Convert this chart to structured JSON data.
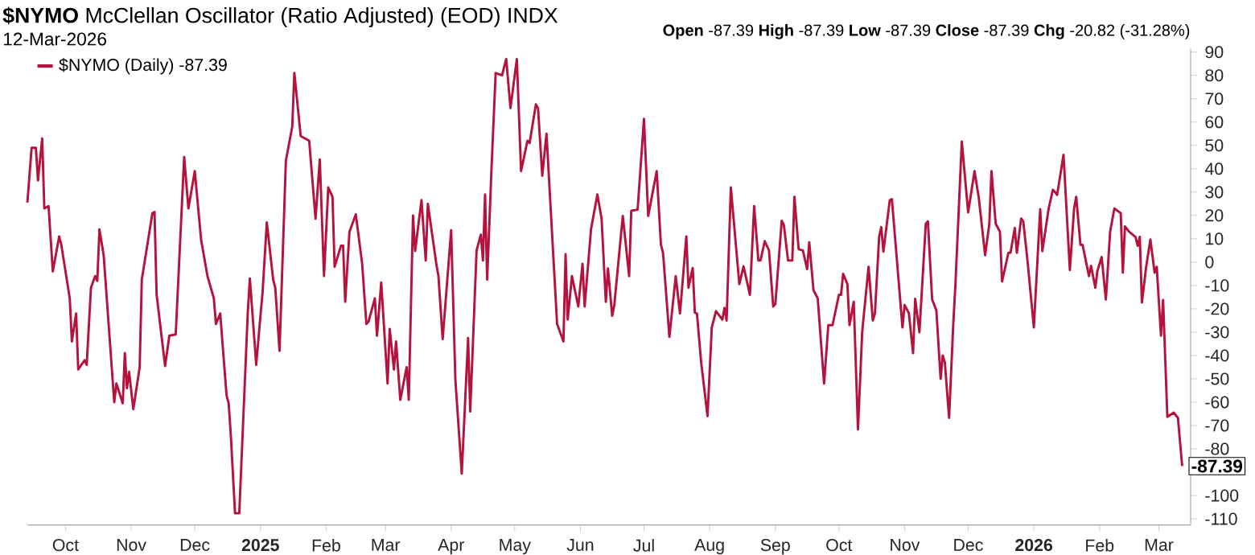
{
  "chart_data": {
    "type": "line",
    "title": "**$NYMO** McClellan Oscillator (Ratio Adjusted) (EOD) INDX",
    "subtitle": "12-Mar-2026",
    "annotations": [
      "**Open** -87.39 **High** -87.39 **Low** -87.39 **Close** -87.39 **Chg** -20.82 (-31.28%)",
      {
        "text": "-87.39",
        "x": "2026-03-12",
        "y": -87.39
      }
    ],
    "legend": "top left",
    "grid": false,
    "tick_labels": "xy",
    "xlim": [
      "2024-09-13",
      "2026-03-16"
    ],
    "ylim": [
      -112.6,
      91.4
    ],
    "xticks": [
      {
        "value": "2024-10-01",
        "label": "Oct"
      },
      {
        "value": "2024-11-01",
        "label": "Nov"
      },
      {
        "value": "2024-12-01",
        "label": "Dec"
      },
      {
        "value": "2025-01-01",
        "label": "2025"
      },
      {
        "value": "2025-02-01",
        "label": "Feb"
      },
      {
        "value": "2025-03-01",
        "label": "Mar"
      },
      {
        "value": "2025-04-01",
        "label": "Apr"
      },
      {
        "value": "2025-05-01",
        "label": "May"
      },
      {
        "value": "2025-06-01",
        "label": "Jun"
      },
      {
        "value": "2025-07-01",
        "label": "Jul"
      },
      {
        "value": "2025-08-01",
        "label": "Aug"
      },
      {
        "value": "2025-09-01",
        "label": "Sep"
      },
      {
        "value": "2025-10-01",
        "label": "Oct"
      },
      {
        "value": "2025-11-01",
        "label": "Nov"
      },
      {
        "value": "2025-12-01",
        "label": "Dec"
      },
      {
        "value": "2026-01-01",
        "label": "2026"
      },
      {
        "value": "2026-02-01",
        "label": "Feb"
      },
      {
        "value": "2026-03-01",
        "label": "Mar"
      }
    ],
    "yticks": [
      90,
      80,
      70,
      60,
      50,
      40,
      30,
      20,
      10,
      0,
      -10,
      -20,
      -30,
      -40,
      -50,
      -60,
      -70,
      -80,
      -100,
      -110
    ],
    "series": [
      {
        "name": "$NYMO (Daily) -87.39",
        "color": "#b5123e",
        "x": [
          "2024-09-13",
          "2024-09-15",
          "2024-09-17",
          "2024-09-18",
          "2024-09-20",
          "2024-09-21",
          "2024-09-23",
          "2024-09-25",
          "2024-09-28",
          "2024-09-29",
          "2024-10-03",
          "2024-10-04",
          "2024-10-06",
          "2024-10-07",
          "2024-10-10",
          "2024-10-11",
          "2024-10-13",
          "2024-10-15",
          "2024-10-16",
          "2024-10-17",
          "2024-10-19",
          "2024-10-24",
          "2024-10-25",
          "2024-10-28",
          "2024-10-29",
          "2024-10-30",
          "2024-10-31",
          "2024-11-02",
          "2024-11-05",
          "2024-11-06",
          "2024-11-11",
          "2024-11-12",
          "2024-11-13",
          "2024-11-17",
          "2024-11-19",
          "2024-11-22",
          "2024-11-26",
          "2024-11-28",
          "2024-12-01",
          "2024-12-04",
          "2024-12-07",
          "2024-12-10",
          "2024-12-11",
          "2024-12-13",
          "2024-12-16",
          "2024-12-17",
          "2024-12-18",
          "2024-12-20",
          "2024-12-22",
          "2024-12-26",
          "2024-12-27",
          "2024-12-30",
          "2025-01-01",
          "2025-01-02",
          "2025-01-04",
          "2025-01-07",
          "2025-01-08",
          "2025-01-10",
          "2025-01-13",
          "2025-01-16",
          "2025-01-17",
          "2025-01-20",
          "2025-01-24",
          "2025-01-27",
          "2025-01-29",
          "2025-01-31",
          "2025-02-02",
          "2025-02-04",
          "2025-02-05",
          "2025-02-08",
          "2025-02-09",
          "2025-02-10",
          "2025-02-12",
          "2025-02-15",
          "2025-02-18",
          "2025-02-20",
          "2025-02-21",
          "2025-02-24",
          "2025-02-25",
          "2025-02-27",
          "2025-03-02",
          "2025-03-03",
          "2025-03-05",
          "2025-03-06",
          "2025-03-08",
          "2025-03-11",
          "2025-03-12",
          "2025-03-14",
          "2025-03-15",
          "2025-03-18",
          "2025-03-20",
          "2025-03-21",
          "2025-03-25",
          "2025-03-26",
          "2025-03-28",
          "2025-04-01",
          "2025-04-03",
          "2025-04-06",
          "2025-04-09",
          "2025-04-10",
          "2025-04-13",
          "2025-04-15",
          "2025-04-16",
          "2025-04-17",
          "2025-04-18",
          "2025-04-20",
          "2025-04-22",
          "2025-04-25",
          "2025-04-27",
          "2025-04-29",
          "2025-05-02",
          "2025-05-04",
          "2025-05-07",
          "2025-05-08",
          "2025-05-11",
          "2025-05-12",
          "2025-05-14",
          "2025-05-16",
          "2025-05-21",
          "2025-05-24",
          "2025-05-25",
          "2025-05-26",
          "2025-05-28",
          "2025-05-31",
          "2025-06-02",
          "2025-06-03",
          "2025-06-06",
          "2025-06-09",
          "2025-06-11",
          "2025-06-13",
          "2025-06-14",
          "2025-06-16",
          "2025-06-17",
          "2025-06-21",
          "2025-06-24",
          "2025-06-25",
          "2025-06-28",
          "2025-07-01",
          "2025-07-03",
          "2025-07-07",
          "2025-07-09",
          "2025-07-10",
          "2025-07-13",
          "2025-07-16",
          "2025-07-18",
          "2025-07-21",
          "2025-07-22",
          "2025-07-24",
          "2025-07-25",
          "2025-07-26",
          "2025-07-28",
          "2025-07-31",
          "2025-08-02",
          "2025-08-04",
          "2025-08-07",
          "2025-08-08",
          "2025-08-09",
          "2025-08-11",
          "2025-08-15",
          "2025-08-17",
          "2025-08-20",
          "2025-08-22",
          "2025-08-24",
          "2025-08-25",
          "2025-08-27",
          "2025-08-29",
          "2025-08-31",
          "2025-09-01",
          "2025-09-04",
          "2025-09-05",
          "2025-09-07",
          "2025-09-09",
          "2025-09-10",
          "2025-09-12",
          "2025-09-14",
          "2025-09-16",
          "2025-09-17",
          "2025-09-19",
          "2025-09-21",
          "2025-09-24",
          "2025-09-26",
          "2025-09-28",
          "2025-10-01",
          "2025-10-02",
          "2025-10-03",
          "2025-10-05",
          "2025-10-06",
          "2025-10-08",
          "2025-10-10",
          "2025-10-12",
          "2025-10-15",
          "2025-10-17",
          "2025-10-18",
          "2025-10-20",
          "2025-10-21",
          "2025-10-22",
          "2025-10-25",
          "2025-10-26",
          "2025-10-31",
          "2025-11-01",
          "2025-11-03",
          "2025-11-05",
          "2025-11-06",
          "2025-11-08",
          "2025-11-11",
          "2025-11-12",
          "2025-11-14",
          "2025-11-16",
          "2025-11-18",
          "2025-11-19",
          "2025-11-20",
          "2025-11-22",
          "2025-11-24",
          "2025-11-25",
          "2025-11-28",
          "2025-12-01",
          "2025-12-04",
          "2025-12-06",
          "2025-12-09",
          "2025-12-11",
          "2025-12-12",
          "2025-12-14",
          "2025-12-16",
          "2025-12-17",
          "2025-12-20",
          "2025-12-21",
          "2025-12-23",
          "2025-12-24",
          "2025-12-26",
          "2025-12-27",
          "2025-12-29",
          "2026-01-01",
          "2026-01-04",
          "2026-01-05",
          "2026-01-08",
          "2026-01-10",
          "2026-01-11",
          "2026-01-12",
          "2026-01-15",
          "2026-01-18",
          "2026-01-20",
          "2026-01-21",
          "2026-01-23",
          "2026-01-24",
          "2026-01-27",
          "2026-01-28",
          "2026-01-30",
          "2026-01-31",
          "2026-02-02",
          "2026-02-04",
          "2026-02-06",
          "2026-02-08",
          "2026-02-11",
          "2026-02-12",
          "2026-02-13",
          "2026-02-15",
          "2026-02-18",
          "2026-02-19",
          "2026-02-20",
          "2026-02-21",
          "2026-02-23",
          "2026-02-25",
          "2026-02-27",
          "2026-02-28",
          "2026-03-02",
          "2026-03-03",
          "2026-03-05",
          "2026-03-08",
          "2026-03-10",
          "2026-03-12"
        ],
        "values": [
          25.5,
          49,
          49,
          35,
          53,
          23,
          24,
          -4,
          11,
          7.5,
          -15.5,
          -34,
          -22,
          -46,
          -42,
          -44,
          -11,
          -6,
          -8,
          14,
          3,
          -60,
          -52,
          -60.5,
          -39,
          -54,
          -47,
          -63,
          -45,
          -7.5,
          21,
          21.5,
          -14,
          -44.5,
          -31.5,
          -31,
          45,
          23,
          39,
          9.5,
          -6,
          -15.5,
          -26.5,
          -22,
          -57,
          -60.5,
          -74,
          -107.6,
          -107.6,
          -22,
          -7,
          -44,
          -23,
          -13,
          17,
          -7.5,
          -11,
          -38,
          43.5,
          58,
          81,
          54,
          52,
          18.6,
          44,
          -6,
          32,
          28,
          -2,
          7,
          7,
          -17,
          13,
          20.5,
          -0.7,
          -26.5,
          -25.5,
          -15.5,
          -31.5,
          -8.7,
          -52,
          -28.6,
          -46,
          -34,
          -59,
          -45,
          -59,
          20,
          4.8,
          26.6,
          0.7,
          25,
          -0.7,
          -6,
          -33,
          13.7,
          -50.5,
          -90.6,
          -32.5,
          -64,
          5,
          11.8,
          0.7,
          29,
          -7.5,
          39,
          81,
          80,
          87,
          66,
          87,
          39,
          52,
          51,
          67.6,
          66,
          37,
          55,
          -26.5,
          -34,
          3.4,
          -24.6,
          -6,
          -19,
          -0.7,
          -19,
          14,
          29,
          18.6,
          -17,
          -2.7,
          -23,
          -18.4,
          19.8,
          -6,
          22,
          22.5,
          61.4,
          19.8,
          39,
          7.5,
          4,
          -32,
          -6,
          -22,
          11,
          -11,
          -2.5,
          -21.6,
          -22,
          -43,
          -66,
          -28,
          -21,
          -24.6,
          -19.6,
          -25,
          32,
          -9.4,
          -1.8,
          -14,
          24,
          0.7,
          0.7,
          9,
          5,
          -19,
          -18,
          17.7,
          16,
          0.7,
          0.7,
          28,
          5.5,
          5,
          -3,
          8.5,
          -12,
          -15.5,
          -52,
          -27,
          -27,
          -14,
          -14,
          -5,
          -9.4,
          -27,
          -17,
          -71.7,
          -29.7,
          -2,
          -25,
          -22,
          11,
          15,
          4.5,
          26.5,
          27,
          -28,
          -18.4,
          -21.8,
          -39,
          -15.7,
          -30,
          16.4,
          17.5,
          -16,
          -20.7,
          -50,
          -40,
          -43,
          -66.7,
          -26,
          -9.4,
          51.7,
          21.3,
          39,
          27.6,
          3,
          16.4,
          39,
          16.4,
          13,
          -8.3,
          4,
          4,
          14.6,
          4,
          18.7,
          17.5,
          0.7,
          -28,
          22.7,
          4.7,
          23,
          31,
          30,
          28.8,
          46,
          -3.4,
          23,
          28,
          7.4,
          7.4,
          -6,
          -1.6,
          -11,
          -3.8,
          2.2,
          -16,
          13,
          23,
          21,
          -4.5,
          15.3,
          13,
          10.8,
          7,
          10.8,
          -17.3,
          -2,
          9.7,
          -4.5,
          -2,
          -31.5,
          -16.2,
          -66.3,
          -64.5,
          -66.7,
          -87.39
        ]
      }
    ]
  }
}
